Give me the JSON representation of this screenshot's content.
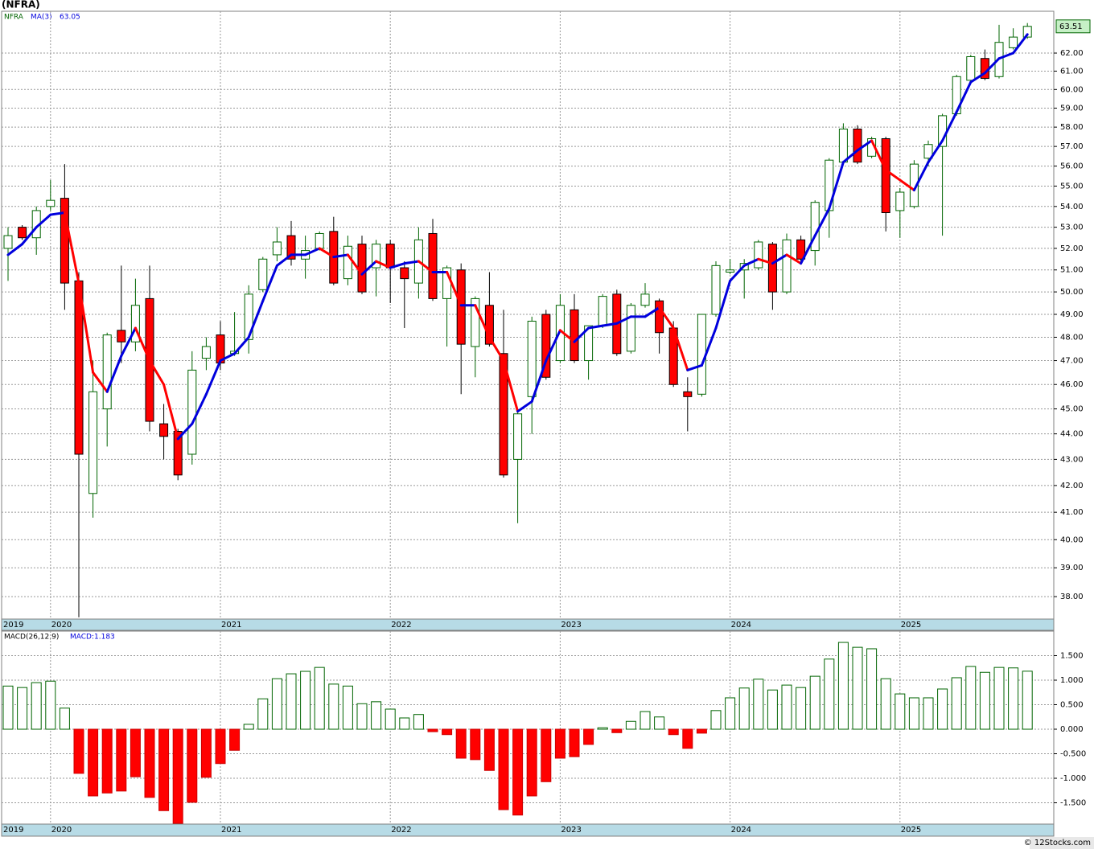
{
  "chart_data": [
    {
      "type": "candlestick",
      "title": "(NFRA)",
      "symbol_label": "NFRA",
      "log": true,
      "grid": true,
      "up_color": "#006400",
      "down_color": "#ff0000",
      "categories": [
        "2019",
        null,
        null,
        "2020",
        null,
        null,
        null,
        null,
        null,
        null,
        null,
        null,
        null,
        null,
        null,
        "2021",
        null,
        null,
        null,
        null,
        null,
        null,
        null,
        null,
        null,
        null,
        null,
        "2022",
        null,
        null,
        null,
        null,
        null,
        null,
        null,
        null,
        null,
        null,
        null,
        "2023",
        null,
        null,
        null,
        null,
        null,
        null,
        null,
        null,
        null,
        null,
        null,
        "2024",
        null,
        null,
        null,
        null,
        null,
        null,
        null,
        null,
        null,
        null,
        null,
        "2025",
        null,
        null,
        null,
        null,
        null,
        null,
        null,
        null,
        null
      ],
      "open": [
        52.0,
        53.0,
        52.5,
        54.0,
        54.4,
        50.5,
        41.7,
        45.0,
        48.3,
        47.8,
        49.7,
        44.4,
        44.1,
        43.2,
        47.1,
        48.1,
        47.3,
        47.9,
        50.1,
        51.7,
        52.6,
        51.5,
        52.0,
        52.8,
        50.6,
        52.2,
        51.1,
        52.2,
        51.1,
        50.4,
        52.7,
        49.7,
        51.0,
        47.6,
        49.4,
        47.3,
        43.0,
        45.5,
        49.0,
        47.0,
        49.2,
        47.0,
        48.5,
        49.9,
        47.4,
        49.4,
        49.6,
        48.4,
        45.7,
        45.6,
        49.0,
        50.9,
        51.0,
        51.1,
        52.2,
        50.0,
        52.4,
        51.9,
        53.8,
        56.2,
        57.9,
        56.5,
        57.4,
        53.8,
        54.0,
        56.4,
        57.0,
        58.7,
        60.5,
        61.7,
        60.7,
        62.3,
        62.9
      ],
      "high": [
        53.0,
        53.1,
        54.0,
        55.3,
        56.1,
        50.9,
        47.0,
        48.2,
        51.2,
        50.6,
        51.2,
        45.2,
        44.2,
        47.4,
        48.0,
        48.7,
        49.1,
        50.3,
        51.6,
        53.0,
        53.3,
        52.6,
        52.8,
        53.5,
        52.6,
        52.6,
        52.4,
        52.4,
        51.4,
        53.0,
        53.4,
        51.2,
        51.3,
        49.8,
        50.9,
        49.2,
        45.0,
        48.9,
        49.2,
        49.9,
        49.9,
        48.5,
        49.9,
        50.1,
        49.5,
        50.4,
        49.7,
        48.7,
        46.3,
        49.0,
        51.4,
        51.5,
        51.5,
        52.4,
        52.3,
        52.7,
        52.6,
        54.3,
        56.4,
        58.2,
        58.1,
        57.5,
        57.5,
        54.9,
        56.3,
        57.3,
        58.7,
        60.8,
        61.9,
        62.2,
        63.6,
        63.4,
        63.7
      ],
      "low": [
        50.5,
        52.4,
        51.7,
        53.8,
        49.2,
        37.3,
        40.8,
        43.5,
        46.9,
        47.4,
        44.1,
        43.0,
        42.2,
        42.8,
        46.6,
        46.6,
        47.2,
        47.3,
        50.0,
        51.4,
        51.2,
        50.6,
        51.9,
        50.3,
        50.3,
        49.9,
        49.8,
        49.5,
        48.4,
        49.7,
        49.6,
        47.6,
        45.6,
        46.3,
        47.6,
        42.3,
        40.6,
        44.0,
        46.2,
        46.9,
        46.9,
        46.2,
        48.4,
        47.2,
        47.3,
        49.3,
        47.3,
        45.9,
        44.1,
        45.5,
        48.9,
        50.8,
        49.7,
        51.0,
        49.2,
        49.9,
        51.4,
        51.2,
        52.5,
        56.1,
        56.1,
        56.4,
        52.8,
        52.5,
        53.9,
        56.0,
        52.6,
        58.6,
        60.4,
        60.5,
        60.6,
        62.2,
        62.8
      ],
      "close": [
        52.6,
        52.5,
        53.8,
        54.3,
        50.4,
        43.2,
        45.7,
        48.1,
        47.8,
        49.4,
        44.5,
        43.9,
        42.4,
        46.6,
        47.6,
        46.9,
        47.4,
        49.9,
        51.5,
        52.3,
        51.5,
        51.9,
        52.7,
        50.4,
        52.1,
        50.0,
        52.2,
        51.1,
        50.6,
        52.4,
        49.7,
        51.1,
        47.7,
        49.7,
        47.7,
        42.4,
        44.8,
        48.7,
        46.3,
        49.4,
        47.0,
        48.5,
        49.8,
        47.3,
        49.4,
        49.9,
        48.2,
        46.0,
        45.5,
        49.0,
        51.2,
        51.0,
        51.3,
        52.3,
        50.0,
        52.4,
        51.5,
        54.2,
        56.3,
        57.9,
        56.2,
        57.4,
        53.7,
        54.7,
        56.1,
        57.1,
        58.6,
        60.7,
        61.8,
        60.6,
        62.6,
        62.9,
        63.51
      ],
      "series": [
        {
          "name": "MA(3)",
          "color": "#0000dd",
          "down_color": "#ff0000",
          "values": [
            51.7,
            52.2,
            53.0,
            53.6,
            53.7,
            50.4,
            46.5,
            45.7,
            47.2,
            48.4,
            47.0,
            46.0,
            43.8,
            44.4,
            45.6,
            47.0,
            47.3,
            48.0,
            49.6,
            51.2,
            51.7,
            51.7,
            52.0,
            51.6,
            51.7,
            50.8,
            51.4,
            51.1,
            51.3,
            51.4,
            50.9,
            50.9,
            49.4,
            49.4,
            48.0,
            47.0,
            44.9,
            45.3,
            47.0,
            48.3,
            47.8,
            48.4,
            48.5,
            48.6,
            48.9,
            48.9,
            49.3,
            48.4,
            46.6,
            46.8,
            48.4,
            50.5,
            51.2,
            51.5,
            51.3,
            51.7,
            51.3,
            52.6,
            53.9,
            56.2,
            56.8,
            57.3,
            55.8,
            55.3,
            54.8,
            56.2,
            57.3,
            58.8,
            60.4,
            60.9,
            61.7,
            62.0,
            63.05
          ]
        }
      ],
      "ylim": [
        37.24,
        64.38
      ],
      "yticks": [
        {
          "value": 38,
          "label": "38.00"
        },
        {
          "value": 39,
          "label": "39.00"
        },
        {
          "value": 40,
          "label": "40.00"
        },
        {
          "value": 41,
          "label": "41.00"
        },
        {
          "value": 42,
          "label": "42.00"
        },
        {
          "value": 43,
          "label": "43.00"
        },
        {
          "value": 44,
          "label": "44.00"
        },
        {
          "value": 45,
          "label": "45.00"
        },
        {
          "value": 46,
          "label": "46.00"
        },
        {
          "value": 47,
          "label": "47.00"
        },
        {
          "value": 48,
          "label": "48.00"
        },
        {
          "value": 49,
          "label": "49.00"
        },
        {
          "value": 50,
          "label": "50.00"
        },
        {
          "value": 51,
          "label": "51.00"
        },
        {
          "value": 52,
          "label": "52.00"
        },
        {
          "value": 53,
          "label": "53.00"
        },
        {
          "value": 54,
          "label": "54.00"
        },
        {
          "value": 55,
          "label": "55.00"
        },
        {
          "value": 56,
          "label": "56.00"
        },
        {
          "value": 57,
          "label": "57.00"
        },
        {
          "value": 58,
          "label": "58.00"
        },
        {
          "value": 59,
          "label": "59.00"
        },
        {
          "value": 60,
          "label": "60.00"
        },
        {
          "value": 61,
          "label": "61.00"
        },
        {
          "value": 62,
          "label": "62.00"
        }
      ]
    },
    {
      "type": "bar",
      "title": "MACD(26,12,9)",
      "last_label": "MACD:1.183",
      "grid": true,
      "up_color": "#006400",
      "down_color": "#ff0000",
      "values": [
        0.88,
        0.85,
        0.95,
        0.98,
        0.43,
        -0.9,
        -1.36,
        -1.3,
        -1.26,
        -0.97,
        -1.39,
        -1.66,
        -1.92,
        -1.49,
        -0.98,
        -0.7,
        -0.43,
        0.1,
        0.62,
        1.03,
        1.13,
        1.18,
        1.26,
        0.92,
        0.88,
        0.52,
        0.56,
        0.41,
        0.23,
        0.3,
        -0.05,
        -0.11,
        -0.59,
        -0.62,
        -0.84,
        -1.64,
        -1.75,
        -1.36,
        -1.07,
        -0.59,
        -0.56,
        -0.31,
        0.03,
        -0.07,
        0.16,
        0.36,
        0.25,
        -0.11,
        -0.39,
        -0.08,
        0.38,
        0.64,
        0.84,
        1.02,
        0.8,
        0.9,
        0.85,
        1.08,
        1.43,
        1.77,
        1.67,
        1.64,
        1.03,
        0.72,
        0.64,
        0.64,
        0.82,
        1.05,
        1.28,
        1.16,
        1.26,
        1.25,
        1.183
      ],
      "ylim": [
        -1.934,
        2.0
      ],
      "yticks": [
        {
          "value": 1.5,
          "label": "1.500"
        },
        {
          "value": 1,
          "label": "1.000"
        },
        {
          "value": 0.5,
          "label": "0.500"
        },
        {
          "value": 0,
          "label": "0.000"
        },
        {
          "value": -0.5,
          "label": "-0.500"
        },
        {
          "value": -1,
          "label": "-1.000"
        },
        {
          "value": -1.5,
          "label": "-1.500"
        }
      ]
    }
  ],
  "footer": "© 12Stocks.com"
}
